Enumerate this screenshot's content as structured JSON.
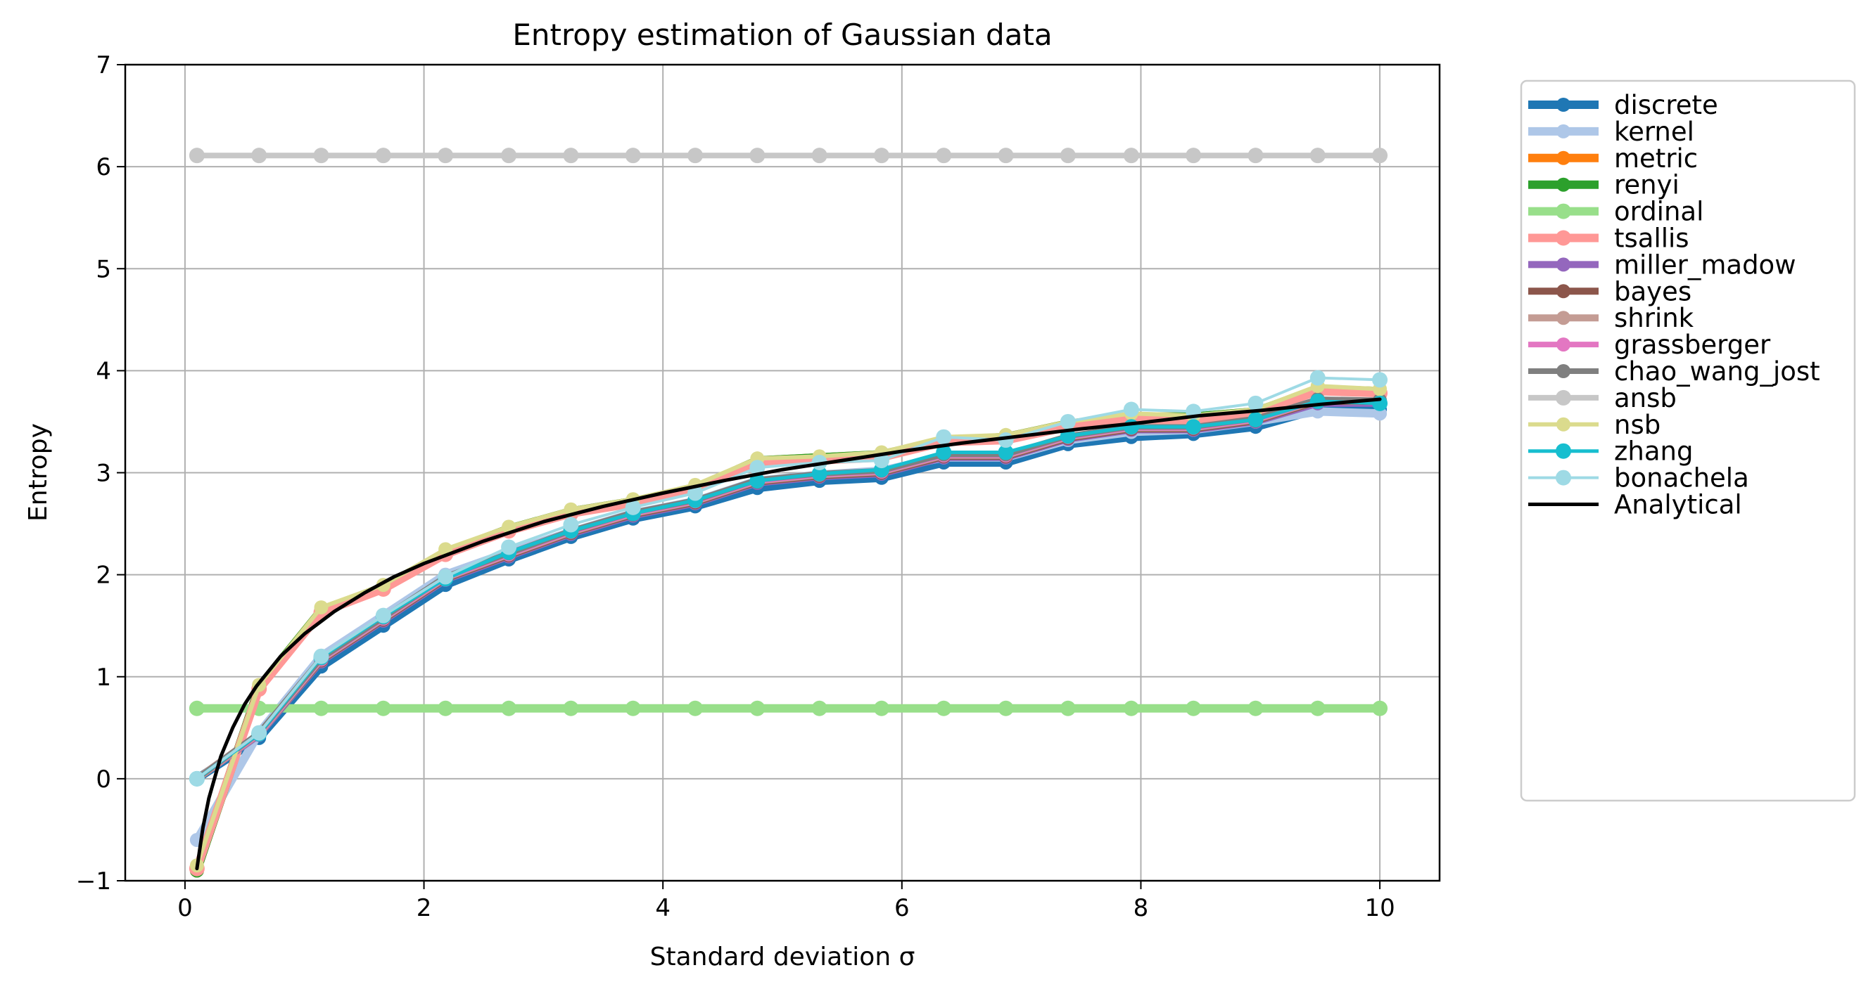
{
  "chart_data": {
    "type": "line",
    "title": "Entropy estimation of Gaussian data",
    "xlabel": "Standard deviation σ",
    "ylabel": "Entropy",
    "xlim": [
      -0.5,
      10.5
    ],
    "ylim": [
      -1,
      7
    ],
    "xticks": [
      0,
      2,
      4,
      6,
      8,
      10
    ],
    "yticks": [
      -1,
      0,
      1,
      2,
      3,
      4,
      5,
      6,
      7
    ],
    "xtick_labels": [
      "0",
      "2",
      "4",
      "6",
      "8",
      "10"
    ],
    "ytick_labels": [
      "−1",
      "0",
      "1",
      "2",
      "3",
      "4",
      "5",
      "6",
      "7"
    ],
    "grid": true,
    "legend_position": "outside right",
    "x": [
      0.1,
      0.62,
      1.14,
      1.66,
      2.18,
      2.71,
      3.23,
      3.75,
      4.27,
      4.79,
      5.31,
      5.83,
      6.35,
      6.87,
      7.39,
      7.92,
      8.44,
      8.96,
      9.48,
      10.0
    ],
    "series": [
      {
        "name": "discrete",
        "color": "#1f77b4",
        "lw": 12,
        "ms": 10,
        "values": [
          0.0,
          0.4,
          1.1,
          1.5,
          1.9,
          2.15,
          2.37,
          2.55,
          2.67,
          2.85,
          2.92,
          2.95,
          3.1,
          3.1,
          3.28,
          3.35,
          3.38,
          3.45,
          3.62,
          3.62
        ]
      },
      {
        "name": "kernel",
        "color": "#aec7e8",
        "lw": 12,
        "ms": 10,
        "values": [
          -0.6,
          0.45,
          1.2,
          1.6,
          2.0,
          2.22,
          2.42,
          2.6,
          2.72,
          2.92,
          2.98,
          3.02,
          3.15,
          3.15,
          3.32,
          3.4,
          3.42,
          3.5,
          3.6,
          3.58
        ]
      },
      {
        "name": "metric",
        "color": "#ff7f0e",
        "lw": 12,
        "ms": 10,
        "values": [
          -0.9,
          0.9,
          1.65,
          1.88,
          2.22,
          2.45,
          2.62,
          2.72,
          2.85,
          3.12,
          3.15,
          3.18,
          3.32,
          3.35,
          3.48,
          3.55,
          3.55,
          3.6,
          3.82,
          3.8
        ]
      },
      {
        "name": "renyi",
        "color": "#2ca02c",
        "lw": 12,
        "ms": 10,
        "values": [
          -0.9,
          0.9,
          1.65,
          1.88,
          2.22,
          2.45,
          2.62,
          2.72,
          2.85,
          3.12,
          3.15,
          3.18,
          3.32,
          3.35,
          3.48,
          3.55,
          3.55,
          3.6,
          3.82,
          3.8
        ]
      },
      {
        "name": "ordinal",
        "color": "#98df8a",
        "lw": 12,
        "ms": 11,
        "values": [
          0.69,
          0.69,
          0.69,
          0.69,
          0.69,
          0.69,
          0.69,
          0.69,
          0.69,
          0.69,
          0.69,
          0.69,
          0.69,
          0.69,
          0.69,
          0.69,
          0.69,
          0.69,
          0.69,
          0.69
        ]
      },
      {
        "name": "tsallis",
        "color": "#ff9896",
        "lw": 12,
        "ms": 11,
        "values": [
          -0.88,
          0.88,
          1.63,
          1.86,
          2.2,
          2.43,
          2.6,
          2.7,
          2.83,
          3.1,
          3.12,
          3.15,
          3.3,
          3.32,
          3.45,
          3.52,
          3.52,
          3.58,
          3.8,
          3.78
        ]
      },
      {
        "name": "miller_madow",
        "color": "#9467bd",
        "lw": 10,
        "ms": 10,
        "values": [
          0.0,
          0.43,
          1.15,
          1.55,
          1.95,
          2.18,
          2.4,
          2.58,
          2.7,
          2.9,
          2.96,
          2.99,
          3.15,
          3.15,
          3.33,
          3.42,
          3.42,
          3.5,
          3.68,
          3.68
        ]
      },
      {
        "name": "bayes",
        "color": "#8c564b",
        "lw": 10,
        "ms": 10,
        "values": [
          0.0,
          0.44,
          1.16,
          1.56,
          1.96,
          2.19,
          2.41,
          2.59,
          2.71,
          2.91,
          2.97,
          3.0,
          3.16,
          3.16,
          3.34,
          3.43,
          3.43,
          3.51,
          3.7,
          3.7
        ]
      },
      {
        "name": "shrink",
        "color": "#c49c94",
        "lw": 10,
        "ms": 10,
        "values": [
          0.0,
          0.44,
          1.17,
          1.57,
          1.97,
          2.2,
          2.42,
          2.6,
          2.72,
          2.92,
          2.98,
          3.01,
          3.17,
          3.17,
          3.35,
          3.44,
          3.44,
          3.52,
          3.71,
          3.7
        ]
      },
      {
        "name": "grassberger",
        "color": "#e377c2",
        "lw": 8,
        "ms": 10,
        "values": [
          0.0,
          0.44,
          1.17,
          1.57,
          1.97,
          2.2,
          2.42,
          2.6,
          2.72,
          2.92,
          2.98,
          3.01,
          3.17,
          3.17,
          3.35,
          3.44,
          3.44,
          3.52,
          3.71,
          3.7
        ]
      },
      {
        "name": "chao_wang_jost",
        "color": "#7f7f7f",
        "lw": 8,
        "ms": 10,
        "values": [
          0.0,
          0.45,
          1.18,
          1.58,
          1.98,
          2.21,
          2.43,
          2.61,
          2.73,
          2.93,
          2.99,
          3.02,
          3.18,
          3.18,
          3.36,
          3.45,
          3.45,
          3.53,
          3.72,
          3.71
        ]
      },
      {
        "name": "ansb",
        "color": "#c7c7c7",
        "lw": 8,
        "ms": 11,
        "values": [
          6.11,
          6.11,
          6.11,
          6.11,
          6.11,
          6.11,
          6.11,
          6.11,
          6.11,
          6.11,
          6.11,
          6.11,
          6.11,
          6.11,
          6.11,
          6.11,
          6.11,
          6.11,
          6.11,
          6.11
        ]
      },
      {
        "name": "nsb",
        "color": "#dbdb8d",
        "lw": 6,
        "ms": 10,
        "values": [
          -0.85,
          0.92,
          1.68,
          1.9,
          2.25,
          2.47,
          2.64,
          2.74,
          2.88,
          3.14,
          3.16,
          3.2,
          3.35,
          3.37,
          3.5,
          3.58,
          3.56,
          3.62,
          3.85,
          3.82
        ]
      },
      {
        "name": "zhang",
        "color": "#17becf",
        "lw": 5,
        "ms": 11,
        "values": [
          0.0,
          0.44,
          1.19,
          1.59,
          1.96,
          2.22,
          2.43,
          2.6,
          2.73,
          2.92,
          2.99,
          3.03,
          3.2,
          3.2,
          3.36,
          3.45,
          3.45,
          3.52,
          3.7,
          3.68
        ]
      },
      {
        "name": "bonachela",
        "color": "#9edae5",
        "lw": 4,
        "ms": 11,
        "values": [
          0.0,
          0.45,
          1.2,
          1.6,
          1.98,
          2.27,
          2.49,
          2.66,
          2.8,
          3.05,
          3.1,
          3.12,
          3.35,
          3.32,
          3.5,
          3.62,
          3.6,
          3.68,
          3.93,
          3.91
        ]
      },
      {
        "name": "Analytical",
        "color": "#000000",
        "lw": 5,
        "ms": 0,
        "analytical": true,
        "x": [
          0.1,
          0.15,
          0.2,
          0.3,
          0.4,
          0.5,
          0.6,
          0.8,
          1.0,
          1.25,
          1.5,
          1.75,
          2.0,
          2.5,
          3.0,
          3.5,
          4.0,
          4.5,
          5.0,
          5.5,
          6.0,
          6.5,
          7.0,
          7.5,
          8.0,
          8.5,
          9.0,
          9.5,
          10.0
        ],
        "values": [
          -0.88,
          -0.48,
          -0.19,
          0.22,
          0.5,
          0.73,
          0.91,
          1.2,
          1.42,
          1.64,
          1.82,
          1.98,
          2.11,
          2.33,
          2.52,
          2.67,
          2.8,
          2.92,
          3.03,
          3.12,
          3.21,
          3.29,
          3.36,
          3.43,
          3.49,
          3.56,
          3.61,
          3.67,
          3.72
        ]
      }
    ]
  }
}
